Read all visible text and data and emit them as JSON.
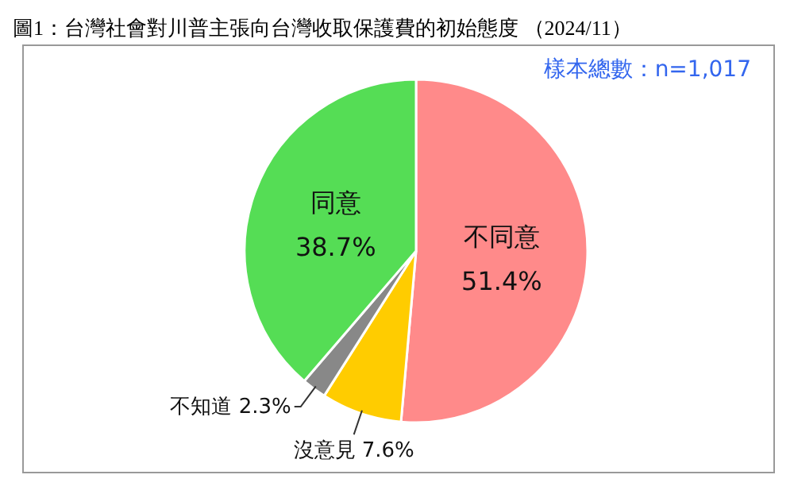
{
  "chart_data": {
    "type": "pie",
    "title": "圖1：台灣社會對川普主張向台灣收取保護費的初始態度 （2024/11）",
    "annotations": [
      "樣本總數：n=1,017"
    ],
    "categories": [
      "不同意",
      "沒意見",
      "不知道",
      "同意"
    ],
    "values": [
      51.4,
      7.6,
      2.3,
      38.7
    ],
    "value_labels": [
      "51.4%",
      "7.6%",
      "2.3%",
      "38.7%"
    ],
    "colors": [
      "#ff8a8a",
      "#ffcc00",
      "#888888",
      "#55dd55"
    ]
  }
}
